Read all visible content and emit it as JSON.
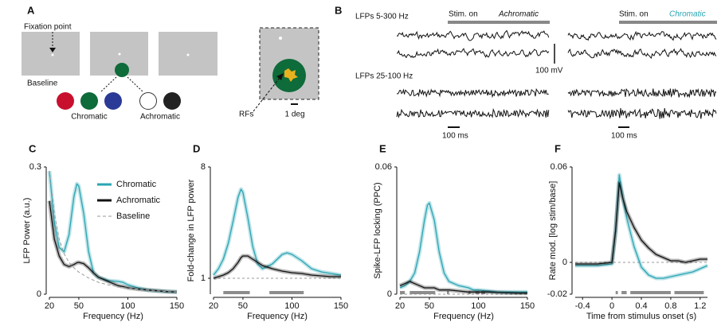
{
  "schematic": {
    "panel_a": {
      "label": "A",
      "fixation": "Fixation point",
      "baseline": "Baseline",
      "chromatic": "Chromatic",
      "achromatic": "Achromatic",
      "rfs": "RFs",
      "scale": "1 deg"
    },
    "panel_b": {
      "label": "B",
      "lfp_broad": "LFPs 5-300 Hz",
      "stim_on_left": "Stim. on",
      "condition_left": "Achromatic",
      "stim_on_right": "Stim. on",
      "condition_right": "Chromatic",
      "voltage_scale": "100 mV",
      "lfp_gamma": "LFPs 25-100 Hz",
      "time_scale_left": "100 ms",
      "time_scale_right": "100 ms"
    }
  },
  "chart_data": [
    {
      "type": "line",
      "label": "C",
      "xlabel": "Frequency (Hz)",
      "ylabel": "LFP Power (a.u.)",
      "x": [
        20,
        25,
        30,
        35,
        40,
        45,
        48,
        50,
        55,
        60,
        65,
        70,
        80,
        90,
        95,
        100,
        110,
        120,
        130,
        140,
        150
      ],
      "xlim": [
        20,
        150
      ],
      "xticks": [
        20,
        50,
        100,
        150
      ],
      "ylim": [
        0,
        0.3
      ],
      "yticks": [
        0,
        0.3
      ],
      "legend": "upper right",
      "series": [
        {
          "name": "Chromatic",
          "color": "#2aa5b3",
          "values": [
            0.29,
            0.17,
            0.11,
            0.1,
            0.14,
            0.23,
            0.26,
            0.255,
            0.19,
            0.1,
            0.05,
            0.04,
            0.032,
            0.03,
            0.028,
            0.022,
            0.015,
            0.01,
            0.008,
            0.006,
            0.005
          ]
        },
        {
          "name": "Achromatic",
          "color": "#111111",
          "values": [
            0.22,
            0.13,
            0.09,
            0.07,
            0.065,
            0.07,
            0.074,
            0.075,
            0.072,
            0.062,
            0.05,
            0.04,
            0.03,
            0.02,
            0.018,
            0.015,
            0.012,
            0.01,
            0.008,
            0.006,
            0.005
          ]
        },
        {
          "name": "Baseline",
          "color": "#999999",
          "style": "dashed",
          "values": [
            0.29,
            0.19,
            0.13,
            0.095,
            0.075,
            0.062,
            0.056,
            0.052,
            0.045,
            0.038,
            0.033,
            0.028,
            0.022,
            0.018,
            0.016,
            0.014,
            0.012,
            0.01,
            0.008,
            0.006,
            0.005
          ]
        }
      ]
    },
    {
      "type": "line",
      "label": "D",
      "xlabel": "Frequency (Hz)",
      "ylabel": "Fold-change in LFP power",
      "x": [
        20,
        25,
        30,
        35,
        40,
        45,
        48,
        50,
        55,
        60,
        65,
        70,
        80,
        90,
        95,
        100,
        110,
        120,
        130,
        140,
        150
      ],
      "xlim": [
        20,
        150
      ],
      "xticks": [
        20,
        50,
        100,
        150
      ],
      "ylim": [
        0,
        8
      ],
      "yticks": [
        1,
        8
      ],
      "hline": 1,
      "sig_bars": [
        [
          30,
          57
        ],
        [
          77,
          112
        ]
      ],
      "series": [
        {
          "color": "#2aa5b3",
          "values": [
            1.2,
            1.6,
            2.2,
            3.2,
            4.6,
            6.1,
            6.6,
            6.4,
            4.8,
            3.0,
            1.9,
            1.6,
            1.9,
            2.5,
            2.6,
            2.5,
            2.1,
            1.6,
            1.4,
            1.3,
            1.2
          ]
        },
        {
          "color": "#111111",
          "values": [
            1.0,
            1.1,
            1.2,
            1.35,
            1.6,
            2.0,
            2.3,
            2.4,
            2.4,
            2.2,
            2.0,
            1.8,
            1.6,
            1.45,
            1.4,
            1.35,
            1.3,
            1.2,
            1.15,
            1.1,
            1.1
          ]
        }
      ]
    },
    {
      "type": "line",
      "label": "E",
      "xlabel": "Frequency (Hz)",
      "ylabel": "Spike-LFP locking (PPC)",
      "x": [
        20,
        25,
        30,
        35,
        40,
        45,
        48,
        50,
        55,
        60,
        65,
        70,
        80,
        90,
        95,
        100,
        110,
        120,
        130,
        140,
        150
      ],
      "xlim": [
        20,
        150
      ],
      "xticks": [
        20,
        50,
        100,
        150
      ],
      "ylim": [
        0,
        0.06
      ],
      "yticks": [
        0,
        0.06
      ],
      "hline": 0,
      "sig_bars": [
        [
          20,
          25
        ],
        [
          30,
          56
        ],
        [
          68,
          70
        ],
        [
          90,
          92
        ],
        [
          97,
          101
        ],
        [
          103,
          107
        ]
      ],
      "series": [
        {
          "color": "#2aa5b3",
          "values": [
            0.003,
            0.004,
            0.006,
            0.01,
            0.02,
            0.035,
            0.042,
            0.043,
            0.035,
            0.02,
            0.01,
            0.006,
            0.004,
            0.003,
            0.002,
            0.002,
            0.0015,
            0.001,
            0.001,
            0.001,
            0.001
          ]
        },
        {
          "color": "#111111",
          "values": [
            0.004,
            0.005,
            0.006,
            0.005,
            0.004,
            0.003,
            0.003,
            0.003,
            0.003,
            0.002,
            0.002,
            0.002,
            0.0015,
            0.001,
            0.001,
            0.001,
            0.001,
            0.0008,
            0.0006,
            0.0005,
            0.0005
          ]
        }
      ]
    },
    {
      "type": "line",
      "label": "F",
      "xlabel": "Time from stimulus onset (s)",
      "ylabel": "Rate mod. [log stim/base]",
      "x": [
        -0.5,
        -0.4,
        -0.2,
        0,
        0.05,
        0.1,
        0.15,
        0.2,
        0.3,
        0.4,
        0.5,
        0.6,
        0.7,
        0.8,
        0.9,
        1.0,
        1.1,
        1.2,
        1.3
      ],
      "xlim": [
        -0.5,
        1.3
      ],
      "xticks": [
        -0.4,
        0,
        0.4,
        0.8,
        1.2
      ],
      "ylim": [
        -0.02,
        0.06
      ],
      "yticks": [
        -0.02,
        0,
        0.06
      ],
      "hline": 0,
      "sig_bars": [
        [
          0.05,
          0.08
        ],
        [
          0.13,
          0.2
        ],
        [
          0.25,
          0.8
        ],
        [
          0.85,
          1.25
        ]
      ],
      "series": [
        {
          "color": "#2aa5b3",
          "values": [
            -0.002,
            -0.002,
            -0.002,
            -0.001,
            0.02,
            0.055,
            0.04,
            0.028,
            0.01,
            -0.003,
            -0.008,
            -0.01,
            -0.01,
            -0.009,
            -0.008,
            -0.007,
            -0.006,
            -0.004,
            -0.002
          ]
        },
        {
          "color": "#111111",
          "values": [
            -0.001,
            -0.001,
            -0.001,
            0,
            0.02,
            0.05,
            0.04,
            0.032,
            0.022,
            0.014,
            0.009,
            0.005,
            0.003,
            0.001,
            0.001,
            0,
            0.001,
            0.002,
            0.002
          ]
        }
      ]
    }
  ]
}
